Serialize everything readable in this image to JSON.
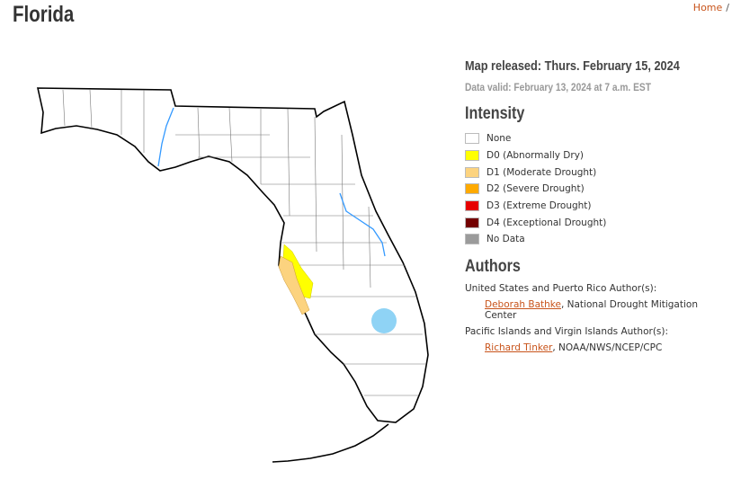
{
  "header": {
    "title": "Florida",
    "breadcrumb": {
      "home": "Home",
      "separator": "/"
    }
  },
  "map_info": {
    "released": "Map released: Thurs. February 15, 2024",
    "valid": "Data valid: February 13, 2024 at 7 a.m. EST"
  },
  "legend": {
    "title": "Intensity",
    "items": [
      {
        "label": "None",
        "color": "#ffffff"
      },
      {
        "label": "D0 (Abnormally Dry)",
        "color": "#ffff00"
      },
      {
        "label": "D1 (Moderate Drought)",
        "color": "#fcd37f"
      },
      {
        "label": "D2 (Severe Drought)",
        "color": "#ffaa00"
      },
      {
        "label": "D3 (Extreme Drought)",
        "color": "#e60000"
      },
      {
        "label": "D4 (Exceptional Drought)",
        "color": "#730000"
      },
      {
        "label": "No Data",
        "color": "#9b9b9b"
      }
    ]
  },
  "authors": {
    "title": "Authors",
    "groups": [
      {
        "heading": "United States and Puerto Rico Author(s):",
        "name": "Deborah Bathke",
        "affiliation": ", National Drought Mitigation Center"
      },
      {
        "heading": "Pacific Islands and Virgin Islands Author(s):",
        "name": "Richard Tinker",
        "affiliation": ", NOAA/NWS/NCEP/CPC"
      }
    ]
  }
}
